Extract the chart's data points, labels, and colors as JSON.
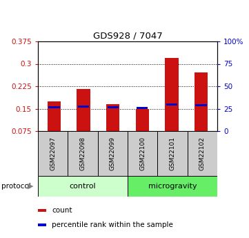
{
  "title": "GDS928 / 7047",
  "samples": [
    "GSM22097",
    "GSM22098",
    "GSM22099",
    "GSM22100",
    "GSM22101",
    "GSM22102"
  ],
  "count_values": [
    0.175,
    0.215,
    0.165,
    0.148,
    0.32,
    0.272
  ],
  "percentile_values": [
    0.155,
    0.158,
    0.155,
    0.152,
    0.163,
    0.162
  ],
  "ylim_left": [
    0.075,
    0.375
  ],
  "ylim_right": [
    0,
    100
  ],
  "yticks_left": [
    0.075,
    0.15,
    0.225,
    0.3,
    0.375
  ],
  "yticks_right": [
    0,
    25,
    50,
    75,
    100
  ],
  "ytick_labels_left": [
    "0.075",
    "0.15",
    "0.225",
    "0.3",
    "0.375"
  ],
  "ytick_labels_right": [
    "0",
    "25",
    "50",
    "75",
    "100%"
  ],
  "grid_yticks": [
    0.15,
    0.225,
    0.3
  ],
  "bar_color": "#cc1111",
  "percentile_color": "#0000cc",
  "bar_width": 0.45,
  "protocol_groups": [
    {
      "label": "control",
      "indices": [
        0,
        1,
        2
      ],
      "color": "#ccffcc"
    },
    {
      "label": "microgravity",
      "indices": [
        3,
        4,
        5
      ],
      "color": "#66ee66"
    }
  ],
  "legend_items": [
    {
      "label": "count",
      "color": "#cc1111"
    },
    {
      "label": "percentile rank within the sample",
      "color": "#0000cc"
    }
  ],
  "left_tick_color": "#cc1111",
  "right_tick_color": "#0000cc",
  "bg_color": "#ffffff",
  "sample_box_color": "#cccccc",
  "protocol_label": "protocol"
}
